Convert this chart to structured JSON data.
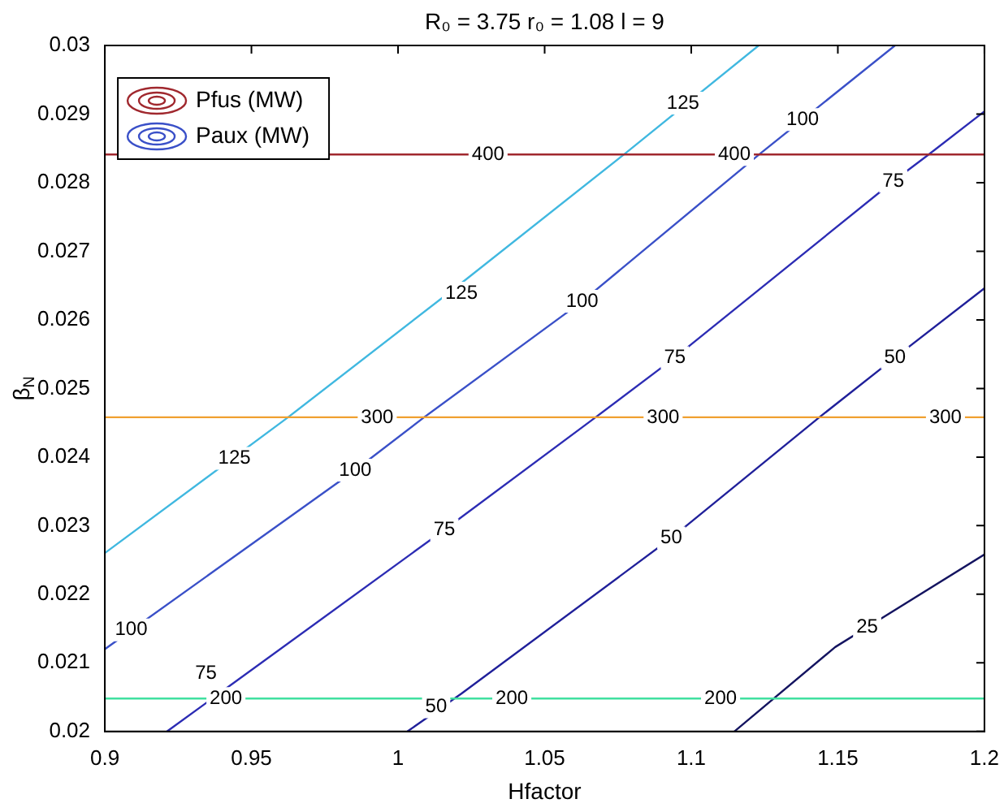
{
  "chart_data": {
    "type": "line",
    "title": "R₀ = 3.75 r₀ = 1.08 l = 9",
    "xlabel": "Hfactor",
    "ylabel": "β$_{N}$",
    "xlim": [
      0.9,
      1.2
    ],
    "xticks": [
      0.9,
      0.95,
      1,
      1.05,
      1.1,
      1.15,
      1.2
    ],
    "ylim": [
      0.02,
      0.03
    ],
    "yticks": [
      0.02,
      0.021,
      0.022,
      0.023,
      0.024,
      0.025,
      0.026,
      0.027,
      0.028,
      0.029,
      0.03
    ],
    "grid": false,
    "legend": "top left",
    "marker": "none",
    "line_style": "solid",
    "series": [
      {
        "name": "Pfus (MW)",
        "color": "#a0282e",
        "x": [
          0.9,
          1.2
        ],
        "values": [
          0.02841,
          0.02841
        ]
      },
      {
        "color": "#f0a030",
        "x": [
          0.9,
          1.2
        ],
        "values": [
          0.02458,
          0.02458
        ]
      },
      {
        "color": "#40e0a0",
        "x": [
          0.9,
          1.2
        ],
        "values": [
          0.02048,
          0.02048
        ]
      },
      {
        "color": "#40b8e0",
        "x": [
          0.9,
          0.9625,
          1.022,
          1.077,
          1.123
        ],
        "values": [
          0.0226,
          0.02458,
          0.02655,
          0.02841,
          0.03
        ]
      },
      {
        "name": "Paux (MW)",
        "color": "#3a50c8",
        "x": [
          0.9,
          0.9854,
          1.0089,
          1.0628,
          1.1231,
          1.1695
        ],
        "values": [
          0.0212,
          0.02381,
          0.02458,
          0.02627,
          0.02841,
          0.03
        ]
      },
      {
        "color": "#2c2cb4",
        "x": [
          0.9212,
          1.0158,
          1.0674,
          1.0944,
          1.1689,
          1.181,
          1.2
        ],
        "values": [
          0.02,
          0.02294,
          0.02458,
          0.02545,
          0.02802,
          0.02841,
          0.02904
        ]
      },
      {
        "color": "#20209a",
        "x": [
          1.0032,
          1.0216,
          1.0932,
          1.1437,
          1.1695,
          1.2
        ],
        "values": [
          0.02,
          0.02055,
          0.02282,
          0.02458,
          0.02545,
          0.02646
        ]
      },
      {
        "color": "#141460",
        "x": [
          1.1147,
          1.1491,
          1.2
        ],
        "values": [
          0.02,
          0.02123,
          0.02258
        ]
      }
    ],
    "annotations": [
      {
        "text": "400",
        "x": 1.0307,
        "y": 0.02841
      },
      {
        "text": "400",
        "x": 1.1147,
        "y": 0.02841
      },
      {
        "text": "300",
        "x": 0.9929,
        "y": 0.02458
      },
      {
        "text": "300",
        "x": 1.0904,
        "y": 0.02458
      },
      {
        "text": "300",
        "x": 1.1867,
        "y": 0.02458
      },
      {
        "text": "200",
        "x": 0.9413,
        "y": 0.02048
      },
      {
        "text": "200",
        "x": 1.0388,
        "y": 0.02048
      },
      {
        "text": "200",
        "x": 1.11,
        "y": 0.02048
      },
      {
        "text": "125",
        "x": 0.9442,
        "y": 0.02398
      },
      {
        "text": "125",
        "x": 1.0216,
        "y": 0.02639
      },
      {
        "text": "125",
        "x": 1.0972,
        "y": 0.02916
      },
      {
        "text": "100",
        "x": 0.909,
        "y": 0.02148
      },
      {
        "text": "100",
        "x": 0.9854,
        "y": 0.02381
      },
      {
        "text": "100",
        "x": 1.0628,
        "y": 0.02627
      },
      {
        "text": "100",
        "x": 1.138,
        "y": 0.02892
      },
      {
        "text": "75",
        "x": 0.9345,
        "y": 0.02085
      },
      {
        "text": "75",
        "x": 1.0158,
        "y": 0.02294
      },
      {
        "text": "75",
        "x": 1.0944,
        "y": 0.02545
      },
      {
        "text": "75",
        "x": 1.1689,
        "y": 0.02802
      },
      {
        "text": "50",
        "x": 1.013,
        "y": 0.02036
      },
      {
        "text": "50",
        "x": 1.0932,
        "y": 0.02282
      },
      {
        "text": "50",
        "x": 1.1695,
        "y": 0.02545
      },
      {
        "text": "25",
        "x": 1.16,
        "y": 0.02152
      }
    ]
  }
}
